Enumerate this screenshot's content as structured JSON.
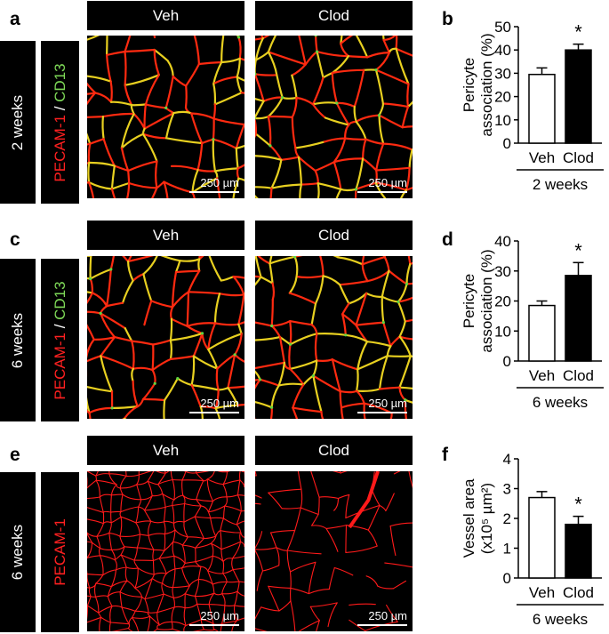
{
  "rows": [
    {
      "letter": "a",
      "time_label": "2 weeks",
      "stain_red": "PECAM-1",
      "stain_sep": " / ",
      "stain_green": "CD13",
      "header_left": "Veh",
      "header_right": "Clod",
      "scale_left": "250 µm",
      "scale_right": "250 µm"
    },
    {
      "letter": "c",
      "time_label": "6 weeks",
      "stain_red": "PECAM-1",
      "stain_sep": " / ",
      "stain_green": "CD13",
      "header_left": "Veh",
      "header_right": "Clod",
      "scale_left": "250 µm",
      "scale_right": "250 µm"
    },
    {
      "letter": "e",
      "time_label": "6 weeks",
      "stain_red": "PECAM-1",
      "header_left": "Veh",
      "header_right": "Clod",
      "scale_left": "250 µm",
      "scale_right": "250 µm"
    }
  ],
  "chart_data": [
    {
      "panel": "b",
      "type": "bar",
      "categories": [
        "Veh",
        "Clod"
      ],
      "values": [
        29.5,
        40
      ],
      "errors": [
        2.8,
        2.5
      ],
      "bar_fills": [
        "#ffffff",
        "#000000"
      ],
      "ylabel": "Pericyte association (%)",
      "ylabel_lines": [
        "Pericyte",
        "association (%)"
      ],
      "ylim": [
        0,
        50
      ],
      "yticks": [
        0,
        10,
        20,
        30,
        40,
        50
      ],
      "group_label": "2 weeks",
      "significance": "*",
      "significance_index": 1
    },
    {
      "panel": "d",
      "type": "bar",
      "categories": [
        "Veh",
        "Clod"
      ],
      "values": [
        18.5,
        28.5
      ],
      "errors": [
        1.5,
        4.3
      ],
      "bar_fills": [
        "#ffffff",
        "#000000"
      ],
      "ylabel": "Pericyte association (%)",
      "ylabel_lines": [
        "Pericyte",
        "association (%)"
      ],
      "ylim": [
        0,
        40
      ],
      "yticks": [
        0,
        10,
        20,
        30,
        40
      ],
      "group_label": "6 weeks",
      "significance": "*",
      "significance_index": 1
    },
    {
      "panel": "f",
      "type": "bar",
      "categories": [
        "Veh",
        "Clod"
      ],
      "values": [
        2.7,
        1.8
      ],
      "errors": [
        0.2,
        0.27
      ],
      "bar_fills": [
        "#ffffff",
        "#000000"
      ],
      "ylabel": "Vessel area (x10⁵ µm²)",
      "ylabel_lines": [
        "Vessel area",
        "(x10⁵ µm²)"
      ],
      "ylim": [
        0,
        4
      ],
      "yticks": [
        0,
        1,
        2,
        3,
        4
      ],
      "group_label": "6 weeks",
      "significance": "*",
      "significance_index": 1
    }
  ]
}
